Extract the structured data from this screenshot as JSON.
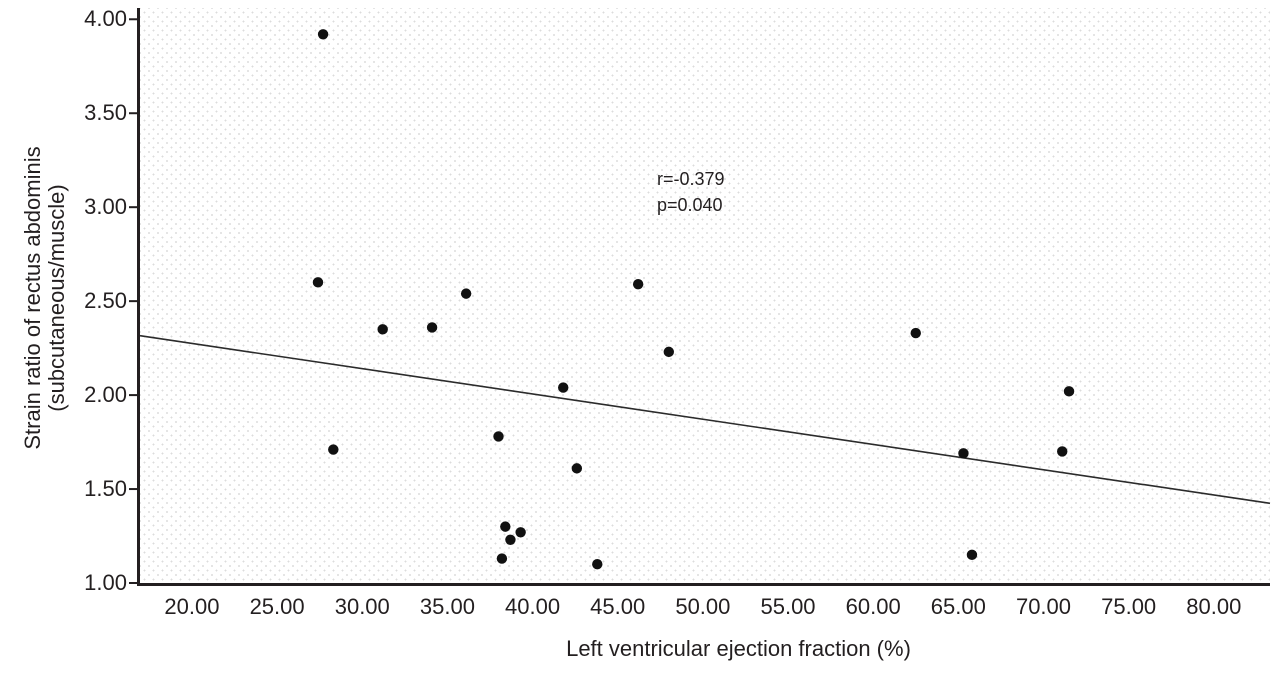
{
  "figure": {
    "y_axis_title_line1": "Strain ratio of rectus abdominis",
    "y_axis_title_line2": "(subcutaneous/muscle)",
    "x_axis_title": "Left ventricular ejection fraction (%)",
    "annotation": {
      "line1": "r=-0.379",
      "line2": "p=0.040"
    }
  },
  "style": {
    "dot_color": "#111111",
    "axis_color": "#231f20",
    "trend_color": "#2b2b2b",
    "text_color": "#231f20"
  },
  "chart_data": {
    "type": "scatter",
    "title": "",
    "xlabel": "Left ventricular ejection fraction (%)",
    "ylabel": "Strain ratio of rectus abdominis (subcutaneous/muscle)",
    "annotation": "r=-0.379, p=0.040",
    "correlation_r": -0.379,
    "p_value": 0.04,
    "grid": "dotted-texture-background",
    "legend": "none",
    "x_tick_values": [
      20,
      25,
      30,
      35,
      40,
      45,
      50,
      55,
      60,
      65,
      70,
      75,
      80
    ],
    "x_tick_labels": [
      "20.00",
      "25.00",
      "30.00",
      "35.00",
      "40.00",
      "45.00",
      "50.00",
      "55.00",
      "60.00",
      "65.00",
      "70.00",
      "75.00",
      "80.00"
    ],
    "y_tick_values": [
      1.0,
      1.5,
      2.0,
      2.5,
      3.0,
      3.5,
      4.0
    ],
    "y_tick_labels": [
      "1.00",
      "1.50",
      "2.00",
      "2.50",
      "3.00",
      "3.50",
      "4.00"
    ],
    "xlim": [
      16.95,
      83.3
    ],
    "ylim": [
      1.0,
      4.06
    ],
    "points": [
      [
        27.7,
        3.92
      ],
      [
        27.4,
        2.6
      ],
      [
        28.3,
        1.71
      ],
      [
        31.2,
        2.35
      ],
      [
        34.1,
        2.36
      ],
      [
        36.1,
        2.54
      ],
      [
        38.0,
        1.78
      ],
      [
        38.4,
        1.3
      ],
      [
        39.3,
        1.27
      ],
      [
        38.7,
        1.23
      ],
      [
        38.2,
        1.13
      ],
      [
        41.8,
        2.04
      ],
      [
        42.6,
        1.61
      ],
      [
        43.8,
        1.1
      ],
      [
        46.2,
        2.59
      ],
      [
        48.0,
        2.23
      ],
      [
        62.5,
        2.33
      ],
      [
        65.3,
        1.69
      ],
      [
        65.8,
        1.15
      ],
      [
        71.1,
        1.7
      ],
      [
        71.5,
        2.02
      ]
    ],
    "trendline": {
      "x1": 16.95,
      "y1": 2.316,
      "x2": 83.3,
      "y2": 1.424
    }
  }
}
